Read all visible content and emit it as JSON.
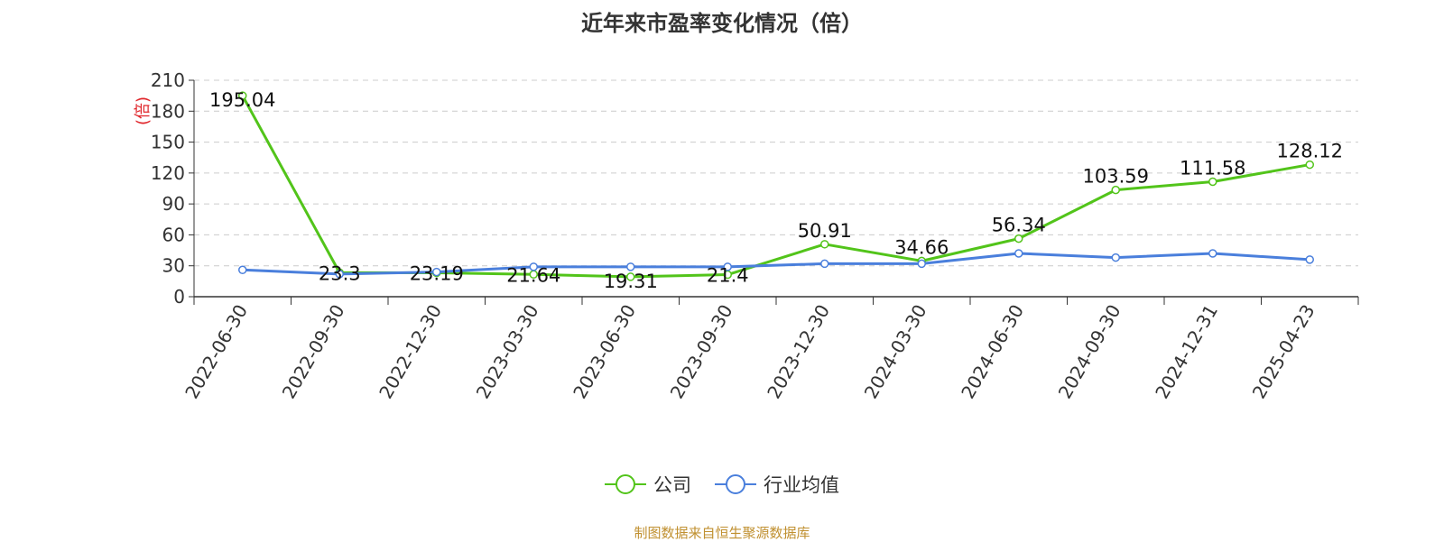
{
  "chart_data": {
    "type": "line",
    "title": "近年来市盈率变化情况（倍）",
    "ylabel": "(倍)",
    "ylim": [
      0,
      210
    ],
    "yticks": [
      0,
      30,
      60,
      90,
      120,
      150,
      180,
      210
    ],
    "grid": true,
    "categories": [
      "2022-06-30",
      "2022-09-30",
      "2022-12-30",
      "2023-03-30",
      "2023-06-30",
      "2023-09-30",
      "2023-12-30",
      "2024-03-30",
      "2024-06-30",
      "2024-09-30",
      "2024-12-31",
      "2025-04-23"
    ],
    "series": [
      {
        "name": "公司",
        "color": "#52c41a",
        "values": [
          195.04,
          23.3,
          23.19,
          21.64,
          19.31,
          21.4,
          50.91,
          34.66,
          56.34,
          103.59,
          111.58,
          128.12
        ],
        "labels": [
          "195.04",
          "23.3",
          "23.19",
          "21.64",
          "19.31",
          "21.4",
          "50.91",
          "34.66",
          "56.34",
          "103.59",
          "111.58",
          "128.12"
        ]
      },
      {
        "name": "行业均值",
        "color": "#4a7fdc",
        "values": [
          26,
          22,
          24,
          29,
          29,
          29,
          32,
          32,
          42,
          38,
          42,
          36
        ]
      }
    ],
    "legend_position": "bottom"
  },
  "source": "制图数据来自恒生聚源数据库"
}
